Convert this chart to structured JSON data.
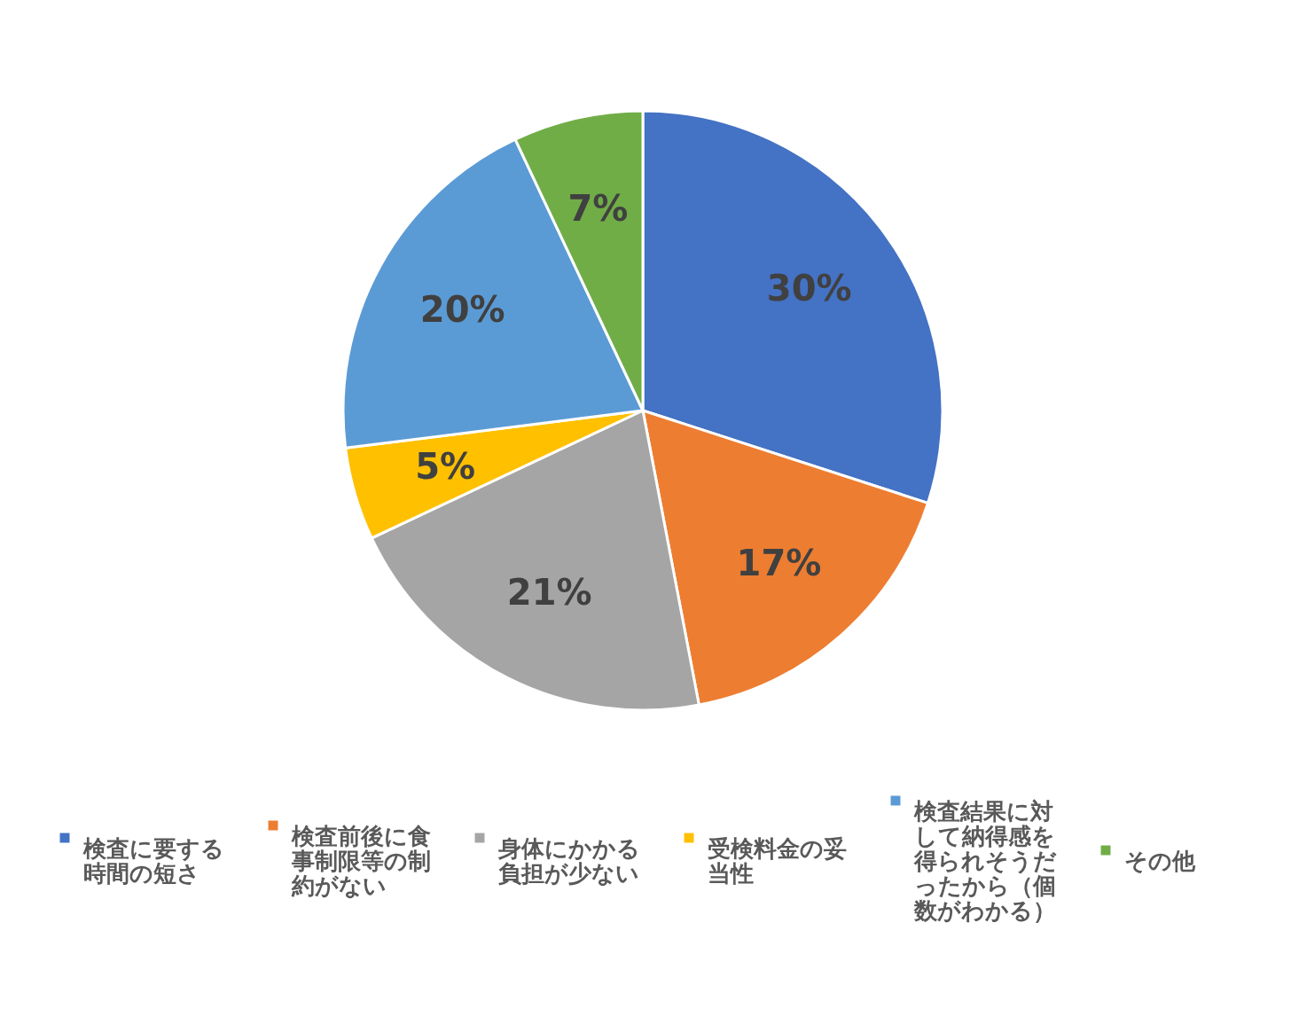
{
  "chart_data": {
    "type": "pie",
    "categories": [
      "検査に要する時間の短さ",
      "検査前後に食事制限等の制約がない",
      "身体にかかる負担が少ない",
      "受検料金の妥当性",
      "検査結果に対して納得感を得られそうだったから（個数がわかる）",
      "その他"
    ],
    "values": [
      30,
      17,
      21,
      5,
      20,
      7
    ],
    "colors": [
      "#4472c4",
      "#ed7d31",
      "#a5a5a5",
      "#ffc000",
      "#5b9bd5",
      "#70ad47"
    ],
    "value_labels": [
      "30%",
      "17%",
      "21%",
      "5%",
      "20%",
      "7%"
    ],
    "legend": "bottom"
  }
}
